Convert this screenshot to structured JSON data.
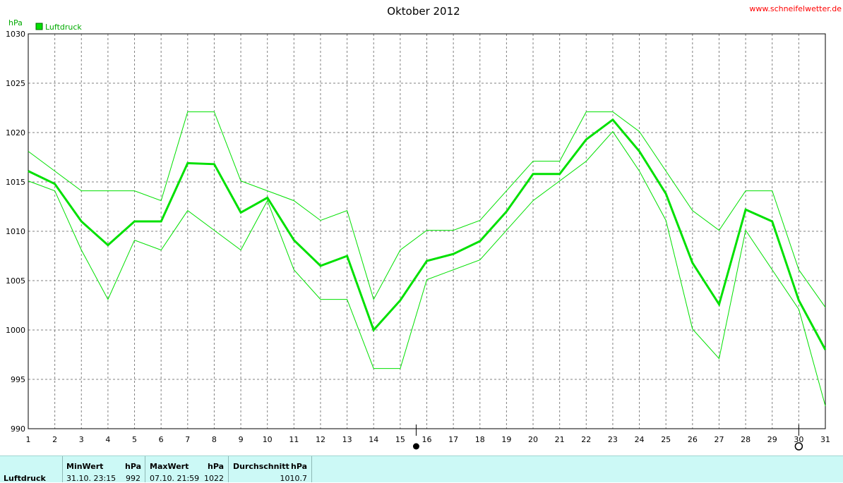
{
  "site": "www.schneifelwetter.de",
  "colors": {
    "series": "#00e000",
    "accent": "#00aa00",
    "grid": "#808080",
    "stats_bg": "#ccf9f6"
  },
  "chart_data": {
    "type": "line",
    "title": "Oktober 2012",
    "ylabel": "hPa",
    "ylim": [
      990,
      1030
    ],
    "yticks": [
      990,
      995,
      1000,
      1005,
      1010,
      1015,
      1020,
      1025,
      1030
    ],
    "x": [
      1,
      2,
      3,
      4,
      5,
      6,
      7,
      8,
      9,
      10,
      11,
      12,
      13,
      14,
      15,
      16,
      17,
      18,
      19,
      20,
      21,
      22,
      23,
      24,
      25,
      26,
      27,
      28,
      29,
      30,
      31
    ],
    "legend": "Luftdruck",
    "legend_position": "top-left",
    "grid": true,
    "series": [
      {
        "name": "Luftdruck",
        "values": [
          1016.1,
          1014.8,
          1011.0,
          1008.6,
          1011.0,
          1011.0,
          1016.9,
          1016.8,
          1011.9,
          1013.4,
          1009.1,
          1006.5,
          1007.5,
          1000.0,
          1003.0,
          1007.0,
          1007.7,
          1009.0,
          1012.0,
          1015.8,
          1015.8,
          1019.3,
          1021.3,
          1018.1,
          1013.8,
          1006.8,
          1002.6,
          1012.2,
          1011.0,
          1003.0,
          998.0
        ]
      },
      {
        "values": [
          1018.1,
          1016.1,
          1014.1,
          1014.1,
          1014.1,
          1013.1,
          1022.1,
          1022.1,
          1015.1,
          1014.1,
          1013.1,
          1011.1,
          1012.1,
          1003.1,
          1008.1,
          1010.1,
          1010.1,
          1011.1,
          1014.1,
          1017.1,
          1017.1,
          1022.1,
          1022.1,
          1020.1,
          1016.1,
          1012.1,
          1010.1,
          1014.1,
          1014.1,
          1006.1,
          1002.3
        ]
      },
      {
        "values": [
          1015.1,
          1014.1,
          1008.1,
          1003.1,
          1009.1,
          1008.1,
          1012.1,
          1010.1,
          1008.1,
          1013.1,
          1006.1,
          1003.1,
          1003.1,
          996.1,
          996.1,
          1005.1,
          1006.1,
          1007.1,
          1010.1,
          1013.1,
          1015.1,
          1017.1,
          1020.1,
          1016.1,
          1011.1,
          1000.1,
          997.1,
          1010.1,
          1006.1,
          1002.1,
          992.3
        ]
      }
    ],
    "moon_markers": [
      {
        "day": 15.6,
        "phase": "new"
      },
      {
        "day": 30.0,
        "phase": "full"
      }
    ]
  },
  "stats": {
    "row_label": "Luftdruck",
    "min": {
      "label": "MinWert",
      "unit": "hPa",
      "datetime": "31.10.  23:15",
      "value": "992"
    },
    "max": {
      "label": "MaxWert",
      "unit": "hPa",
      "datetime": "07.10.  21:59",
      "value": "1022"
    },
    "avg": {
      "label": "Durchschnitt",
      "unit": "hPa",
      "value": "1010.7"
    }
  }
}
